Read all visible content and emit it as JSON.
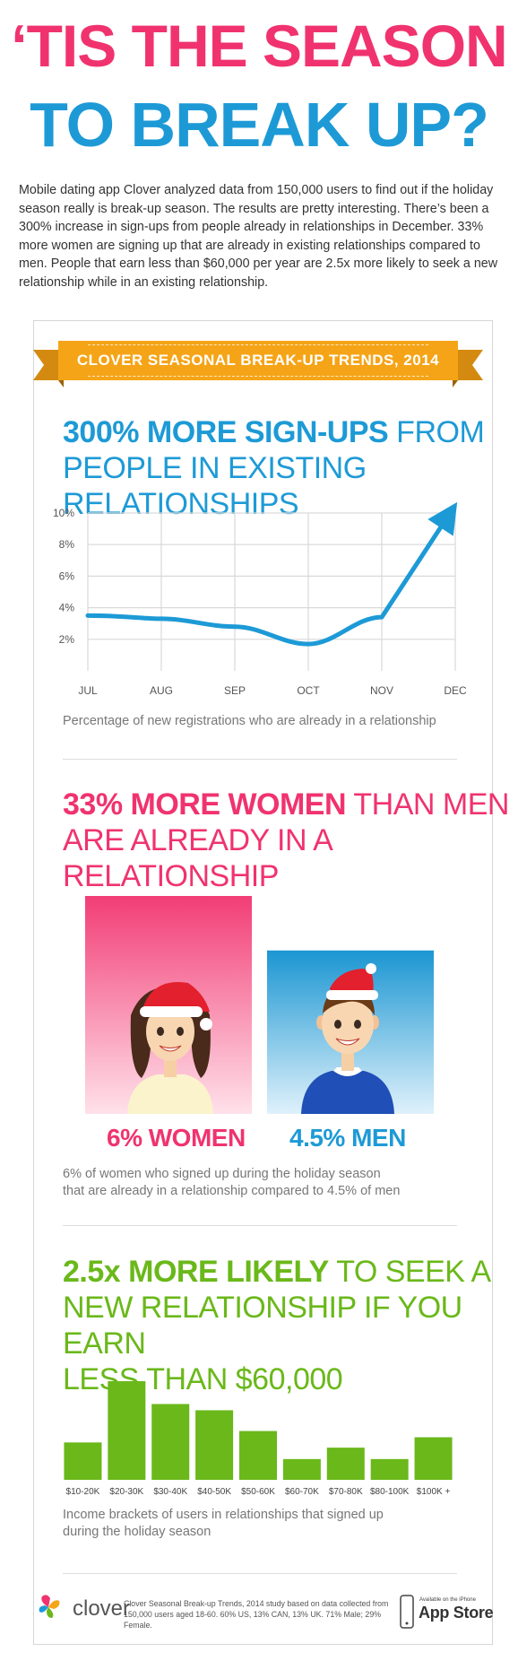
{
  "header": {
    "title_line1": "‘TIS THE SEASON",
    "title_line2": "TO BREAK UP?",
    "intro": "Mobile dating app Clover analyzed data from 150,000 users to find out if the holiday season really is break-up season. The results are pretty interesting. There’s been a 300% increase in sign-ups from people already in relationships in December. 33% more women are signing up that are already in existing relationships compared to men. People that earn less than $60,000 per year are 2.5x more likely to seek a new relationship while in an existing relationship."
  },
  "banner": {
    "label": "CLOVER SEASONAL BREAK-UP TRENDS, 2014"
  },
  "section1": {
    "title_bold": "300% MORE SIGN-UPS",
    "title_rest": "FROM",
    "title_line2": "PEOPLE IN EXISTING RELATIONSHIPS",
    "caption": "Percentage of new registrations who are already in a relationship"
  },
  "section2": {
    "title_bold": "33% MORE WOMEN",
    "title_rest": "THAN MEN",
    "title_line2": "ARE ALREADY IN A RELATIONSHIP",
    "caption_line1": "6% of women who signed up during the holiday season",
    "caption_line2": "that are already in a relationship compared to 4.5% of men"
  },
  "section3": {
    "title_bold": "2.5x MORE LIKELY",
    "title_rest": "TO SEEK A",
    "title_line2": "NEW RELATIONSHIP IF YOU EARN",
    "title_line3": "LESS THAN $60,000",
    "caption_line1": "Income brackets of users in relationships that signed up",
    "caption_line2": "during the holiday season"
  },
  "footer": {
    "brand": "clover",
    "note": "Clover Seasonal Break-up Trends, 2014 study based on data collected from 150,000 users aged 18-60. 60% US, 13% CAN, 13% UK. 71% Male; 29% Female.",
    "store_small": "Available on the iPhone",
    "store_big": "App Store"
  },
  "colors": {
    "pink": "#f0336f",
    "blue": "#1d9ad6",
    "green": "#6ab81a",
    "banner": "#f5a417"
  },
  "chart_data": [
    {
      "type": "line",
      "x": [
        "JUL",
        "AUG",
        "SEP",
        "OCT",
        "NOV",
        "DEC"
      ],
      "series": [
        {
          "values": [
            3.5,
            3.3,
            2.8,
            1.7,
            3.4,
            10.5
          ]
        }
      ],
      "yticks": [
        "2%",
        "4%",
        "6%",
        "8%",
        "10%"
      ],
      "ylim": [
        0,
        10
      ],
      "grid": true
    },
    {
      "type": "bar",
      "categories": [
        "WOMEN",
        "MEN"
      ],
      "values": [
        6,
        4.5
      ],
      "labels": [
        "6% WOMEN",
        "4.5% MEN"
      ],
      "unit": "%"
    },
    {
      "type": "bar",
      "categories": [
        "$10-20K",
        "$20-30K",
        "$30-40K",
        "$40-50K",
        "$50-60K",
        "$60-70K",
        "$70-80K",
        "$80-100K",
        "$100K +"
      ],
      "values": [
        36,
        95,
        73,
        67,
        47,
        20,
        31,
        20,
        41
      ]
    }
  ]
}
